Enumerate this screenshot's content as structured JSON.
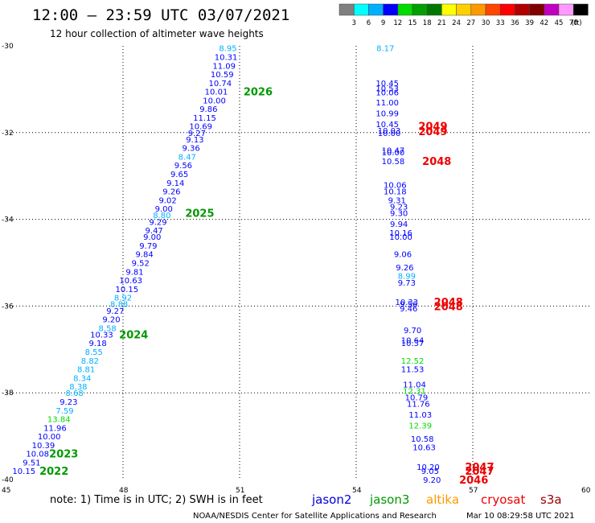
{
  "header": {
    "title": "12:00 – 23:59 UTC 03/07/2021",
    "subtitle": "12 hour collection of altimeter wave heights"
  },
  "colorbar": {
    "labels": [
      "3",
      "6",
      "9",
      "12",
      "15",
      "18",
      "21",
      "24",
      "27",
      "30",
      "33",
      "36",
      "39",
      "42",
      "45",
      "70"
    ],
    "unit": "(ft)",
    "colors": [
      "#7f7f7f",
      "#00ffff",
      "#00b0ff",
      "#0000ff",
      "#00dc00",
      "#00a000",
      "#007800",
      "#ffff00",
      "#ffd000",
      "#ff9900",
      "#ff4500",
      "#ff0000",
      "#b00000",
      "#800000",
      "#c000c0",
      "#ff99ff",
      "#000000"
    ]
  },
  "footer": {
    "note": "note:  1) Time is in UTC; 2) SWH is in feet",
    "credit": "NOAA/NESDIS Center for Satellite Applications and Research",
    "timestamp": "Mar 10 08:29:58 UTC 2021"
  },
  "satellites": [
    {
      "name": "jason2",
      "color": "#0000dd"
    },
    {
      "name": "jason3",
      "color": "#009900"
    },
    {
      "name": "altika",
      "color": "#ff9900"
    },
    {
      "name": "cryosat",
      "color": "#ee0000"
    },
    {
      "name": "s3a",
      "color": "#990000"
    }
  ],
  "chart_data": {
    "type": "scatter",
    "title": "12:00 – 23:59 UTC 03/07/2021",
    "subtitle": "12 hour collection of altimeter wave heights",
    "x_axis": {
      "range": [
        45,
        60
      ],
      "ticks": [
        "45",
        "48",
        "51",
        "54",
        "57",
        "60"
      ]
    },
    "y_axis": {
      "range": [
        -40,
        -30
      ],
      "ticks": [
        "-30",
        "-32",
        "-34",
        "-36",
        "-38",
        "-40"
      ]
    },
    "grid": true,
    "unit": "ft",
    "color_scale": [
      {
        "min": 6,
        "max": 9,
        "color": "#00b0ff"
      },
      {
        "min": 9,
        "max": 12,
        "color": "#0000ff"
      },
      {
        "min": 12,
        "max": 15,
        "color": "#00dc00"
      }
    ],
    "points": [
      {
        "lon": 50.7,
        "lat": -30.05,
        "value": 8.95
      },
      {
        "lon": 50.65,
        "lat": -30.25,
        "value": 10.31
      },
      {
        "lon": 50.6,
        "lat": -30.45,
        "value": 11.09
      },
      {
        "lon": 50.55,
        "lat": -30.65,
        "value": 10.59
      },
      {
        "lon": 50.5,
        "lat": -30.85,
        "value": 10.74
      },
      {
        "lon": 50.4,
        "lat": -31.05,
        "value": 10.01
      },
      {
        "lon": 50.35,
        "lat": -31.25,
        "value": 10.0
      },
      {
        "lon": 50.2,
        "lat": -31.45,
        "value": 9.86
      },
      {
        "lon": 50.1,
        "lat": -31.65,
        "value": 11.15
      },
      {
        "lon": 50.0,
        "lat": -31.85,
        "value": 10.69
      },
      {
        "lon": 49.9,
        "lat": -32.0,
        "value": 9.27
      },
      {
        "lon": 49.85,
        "lat": -32.15,
        "value": 9.13
      },
      {
        "lon": 49.75,
        "lat": -32.35,
        "value": 9.36
      },
      {
        "lon": 49.65,
        "lat": -32.55,
        "value": 8.47
      },
      {
        "lon": 49.55,
        "lat": -32.75,
        "value": 9.56
      },
      {
        "lon": 49.45,
        "lat": -32.95,
        "value": 9.65
      },
      {
        "lon": 49.35,
        "lat": -33.15,
        "value": 9.14
      },
      {
        "lon": 49.25,
        "lat": -33.35,
        "value": 9.26
      },
      {
        "lon": 49.15,
        "lat": -33.55,
        "value": 9.02
      },
      {
        "lon": 49.05,
        "lat": -33.75,
        "value": 9.0
      },
      {
        "lon": 49.0,
        "lat": -33.9,
        "value": 8.8
      },
      {
        "lon": 48.9,
        "lat": -34.05,
        "value": 9.29
      },
      {
        "lon": 48.8,
        "lat": -34.25,
        "value": 9.47
      },
      {
        "lon": 48.75,
        "lat": -34.4,
        "value": 9.0
      },
      {
        "lon": 48.65,
        "lat": -34.6,
        "value": 9.79
      },
      {
        "lon": 48.55,
        "lat": -34.8,
        "value": 9.84
      },
      {
        "lon": 48.45,
        "lat": -35.0,
        "value": 9.52
      },
      {
        "lon": 48.3,
        "lat": -35.2,
        "value": 9.81
      },
      {
        "lon": 48.2,
        "lat": -35.4,
        "value": 10.63
      },
      {
        "lon": 48.1,
        "lat": -35.6,
        "value": 10.15
      },
      {
        "lon": 48.0,
        "lat": -35.8,
        "value": 8.92
      },
      {
        "lon": 47.9,
        "lat": -35.95,
        "value": 8.88
      },
      {
        "lon": 47.8,
        "lat": -36.1,
        "value": 9.27
      },
      {
        "lon": 47.7,
        "lat": -36.3,
        "value": 9.2
      },
      {
        "lon": 47.6,
        "lat": -36.5,
        "value": 8.58
      },
      {
        "lon": 47.45,
        "lat": -36.65,
        "value": 10.33
      },
      {
        "lon": 47.35,
        "lat": -36.85,
        "value": 9.18
      },
      {
        "lon": 47.25,
        "lat": -37.05,
        "value": 8.55
      },
      {
        "lon": 47.15,
        "lat": -37.25,
        "value": 8.82
      },
      {
        "lon": 47.05,
        "lat": -37.45,
        "value": 8.81
      },
      {
        "lon": 46.95,
        "lat": -37.65,
        "value": 8.34
      },
      {
        "lon": 46.85,
        "lat": -37.85,
        "value": 8.38
      },
      {
        "lon": 46.75,
        "lat": -38.0,
        "value": 8.68
      },
      {
        "lon": 46.6,
        "lat": -38.2,
        "value": 9.23
      },
      {
        "lon": 46.5,
        "lat": -38.4,
        "value": 7.59
      },
      {
        "lon": 46.35,
        "lat": -38.6,
        "value": 13.84
      },
      {
        "lon": 46.25,
        "lat": -38.8,
        "value": 11.96
      },
      {
        "lon": 46.1,
        "lat": -39.0,
        "value": 10.0
      },
      {
        "lon": 45.95,
        "lat": -39.2,
        "value": 10.39
      },
      {
        "lon": 45.8,
        "lat": -39.4,
        "value": 10.08
      },
      {
        "lon": 45.65,
        "lat": -39.6,
        "value": 9.51
      },
      {
        "lon": 45.45,
        "lat": -39.8,
        "value": 10.15
      },
      {
        "lon": 54.75,
        "lat": -30.05,
        "value": 8.17
      },
      {
        "lon": 54.8,
        "lat": -30.85,
        "value": 10.45
      },
      {
        "lon": 54.8,
        "lat": -30.97,
        "value": 10.53
      },
      {
        "lon": 54.8,
        "lat": -31.07,
        "value": 10.06
      },
      {
        "lon": 54.8,
        "lat": -31.3,
        "value": 11.0
      },
      {
        "lon": 54.8,
        "lat": -31.55,
        "value": 10.99
      },
      {
        "lon": 54.8,
        "lat": -31.8,
        "value": 10.45
      },
      {
        "lon": 54.85,
        "lat": -31.95,
        "value": 10.03
      },
      {
        "lon": 54.85,
        "lat": -32.0,
        "value": 10.0
      },
      {
        "lon": 54.95,
        "lat": -32.4,
        "value": 10.47
      },
      {
        "lon": 54.95,
        "lat": -32.45,
        "value": 10.0
      },
      {
        "lon": 54.95,
        "lat": -32.65,
        "value": 10.58
      },
      {
        "lon": 55.0,
        "lat": -33.2,
        "value": 10.06
      },
      {
        "lon": 55.0,
        "lat": -33.35,
        "value": 10.18
      },
      {
        "lon": 55.05,
        "lat": -33.55,
        "value": 9.31
      },
      {
        "lon": 55.1,
        "lat": -33.7,
        "value": 9.23
      },
      {
        "lon": 55.1,
        "lat": -33.85,
        "value": 9.3
      },
      {
        "lon": 55.1,
        "lat": -34.1,
        "value": 9.94
      },
      {
        "lon": 55.15,
        "lat": -34.3,
        "value": 10.16
      },
      {
        "lon": 55.15,
        "lat": -34.4,
        "value": 10.0
      },
      {
        "lon": 55.2,
        "lat": -34.8,
        "value": 9.06
      },
      {
        "lon": 55.25,
        "lat": -35.1,
        "value": 9.26
      },
      {
        "lon": 55.3,
        "lat": -35.3,
        "value": 8.99
      },
      {
        "lon": 55.3,
        "lat": -35.45,
        "value": 9.73
      },
      {
        "lon": 55.3,
        "lat": -35.9,
        "value": 10.33
      },
      {
        "lon": 55.35,
        "lat": -35.95,
        "value": 9.56
      },
      {
        "lon": 55.35,
        "lat": -36.05,
        "value": 9.46
      },
      {
        "lon": 55.45,
        "lat": -36.55,
        "value": 9.7
      },
      {
        "lon": 55.45,
        "lat": -36.78,
        "value": 10.64
      },
      {
        "lon": 55.45,
        "lat": -36.85,
        "value": 10.37
      },
      {
        "lon": 55.45,
        "lat": -37.25,
        "value": 12.52
      },
      {
        "lon": 55.45,
        "lat": -37.45,
        "value": 11.53
      },
      {
        "lon": 55.5,
        "lat": -37.8,
        "value": 11.04
      },
      {
        "lon": 55.5,
        "lat": -37.95,
        "value": 12.31
      },
      {
        "lon": 55.55,
        "lat": -38.1,
        "value": 10.79
      },
      {
        "lon": 55.6,
        "lat": -38.25,
        "value": 11.76
      },
      {
        "lon": 55.65,
        "lat": -38.5,
        "value": 11.03
      },
      {
        "lon": 55.65,
        "lat": -38.75,
        "value": 12.39
      },
      {
        "lon": 55.7,
        "lat": -39.05,
        "value": 10.58
      },
      {
        "lon": 55.75,
        "lat": -39.25,
        "value": 10.63
      },
      {
        "lon": 55.85,
        "lat": -39.7,
        "value": 10.2
      },
      {
        "lon": 55.9,
        "lat": -39.8,
        "value": 9.05
      },
      {
        "lon": 55.95,
        "lat": -40.0,
        "value": 9.2
      }
    ],
    "cycle_labels": [
      {
        "label": "2026",
        "lon": 51.1,
        "lat": -31.05,
        "satellite": "jason3"
      },
      {
        "label": "2025",
        "lon": 49.6,
        "lat": -33.85,
        "satellite": "jason3"
      },
      {
        "label": "2024",
        "lon": 47.9,
        "lat": -36.65,
        "satellite": "jason3"
      },
      {
        "label": "2023",
        "lon": 46.1,
        "lat": -39.4,
        "satellite": "jason3"
      },
      {
        "label": "2022",
        "lon": 45.85,
        "lat": -39.8,
        "satellite": "jason3"
      },
      {
        "label": "2049",
        "lon": 55.6,
        "lat": -31.85,
        "satellite": "cryosat"
      },
      {
        "label": "2049",
        "lon": 55.6,
        "lat": -31.97,
        "satellite": "cryosat"
      },
      {
        "label": "2048",
        "lon": 55.7,
        "lat": -32.65,
        "satellite": "cryosat"
      },
      {
        "label": "2048",
        "lon": 56.0,
        "lat": -35.9,
        "satellite": "cryosat"
      },
      {
        "label": "2048",
        "lon": 56.0,
        "lat": -36.0,
        "satellite": "cryosat"
      },
      {
        "label": "2047",
        "lon": 56.8,
        "lat": -39.7,
        "satellite": "cryosat"
      },
      {
        "label": "2047",
        "lon": 56.8,
        "lat": -39.8,
        "satellite": "cryosat"
      },
      {
        "label": "2046",
        "lon": 56.65,
        "lat": -40.0,
        "satellite": "cryosat"
      }
    ]
  }
}
